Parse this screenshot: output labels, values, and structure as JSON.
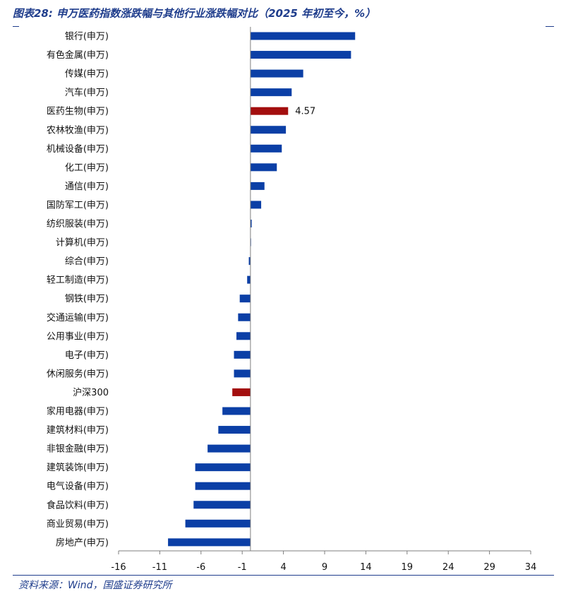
{
  "figure": {
    "title": "图表28:  申万医药指数涨跌幅与其他行业涨跌幅对比（2025 年初至今，%）",
    "source": "资料来源：Wind，国盛证券研究所"
  },
  "chart_data": {
    "type": "bar",
    "orientation": "horizontal",
    "categories": [
      "银行(申万)",
      "有色金属(申万)",
      "传媒(申万)",
      "汽车(申万)",
      "医药生物(申万)",
      "农林牧渔(申万)",
      "机械设备(申万)",
      "化工(申万)",
      "通信(申万)",
      "国防军工(申万)",
      "纺织服装(申万)",
      "计算机(申万)",
      "综合(申万)",
      "轻工制造(申万)",
      "钢铁(申万)",
      "交通运输(申万)",
      "公用事业(申万)",
      "电子(申万)",
      "休闲服务(申万)",
      "沪深300",
      "家用电器(申万)",
      "建筑材料(申万)",
      "非银金融(申万)",
      "建筑装饰(申万)",
      "电气设备(申万)",
      "食品饮料(申万)",
      "商业贸易(申万)",
      "房地产(申万)"
    ],
    "values": [
      12.7,
      12.2,
      6.4,
      5.0,
      4.57,
      4.3,
      3.8,
      3.2,
      1.7,
      1.3,
      0.15,
      0.05,
      -0.2,
      -0.4,
      -1.3,
      -1.5,
      -1.7,
      -2.0,
      -2.0,
      -2.2,
      -3.4,
      -3.9,
      -5.2,
      -6.7,
      -6.7,
      -6.9,
      -7.9,
      -10.0
    ],
    "colors": [
      "#0B3FA6",
      "#0B3FA6",
      "#0B3FA6",
      "#0B3FA6",
      "#A30E0E",
      "#0B3FA6",
      "#0B3FA6",
      "#0B3FA6",
      "#0B3FA6",
      "#0B3FA6",
      "#0B3FA6",
      "#0B3FA6",
      "#0B3FA6",
      "#0B3FA6",
      "#0B3FA6",
      "#0B3FA6",
      "#0B3FA6",
      "#0B3FA6",
      "#0B3FA6",
      "#A30E0E",
      "#0B3FA6",
      "#0B3FA6",
      "#0B3FA6",
      "#0B3FA6",
      "#0B3FA6",
      "#0B3FA6",
      "#0B3FA6",
      "#0B3FA6"
    ],
    "data_labels": [
      {
        "category_index": 4,
        "text": "4.57"
      }
    ],
    "x_ticks": [
      -16,
      -11,
      -6,
      -1,
      4,
      9,
      14,
      19,
      24,
      29,
      34
    ],
    "xlim": [
      -16,
      34
    ],
    "grid": false,
    "legend": "none"
  }
}
